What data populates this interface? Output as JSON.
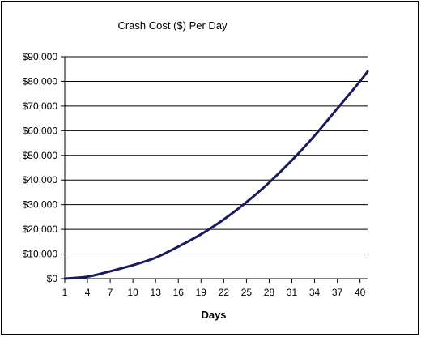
{
  "chart_data": {
    "type": "line",
    "title": "Crash Cost ($) Per Day",
    "xlabel": "Days",
    "ylabel": "",
    "xlim": [
      1,
      41
    ],
    "ylim": [
      0,
      90000
    ],
    "grid": true,
    "legend": "none",
    "x_ticks": [
      1,
      4,
      7,
      10,
      13,
      16,
      19,
      22,
      25,
      28,
      31,
      34,
      37,
      40
    ],
    "x_tick_labels": [
      "1",
      "4",
      "7",
      "10",
      "13",
      "16",
      "19",
      "22",
      "25",
      "28",
      "31",
      "34",
      "37",
      "40"
    ],
    "y_ticks": [
      0,
      10000,
      20000,
      30000,
      40000,
      50000,
      60000,
      70000,
      80000,
      90000
    ],
    "y_tick_labels": [
      "$0",
      "$10,000",
      "$20,000",
      "$30,000",
      "$40,000",
      "$50,000",
      "$60,000",
      "$70,000",
      "$80,000",
      "$90,000"
    ],
    "series": [
      {
        "color": "#1a1a5e",
        "x": [
          1,
          4,
          7,
          10,
          13,
          16,
          19,
          22,
          25,
          28,
          31,
          34,
          37,
          40,
          41
        ],
        "y": [
          0,
          800,
          3000,
          5500,
          8500,
          13000,
          18000,
          24000,
          31000,
          39000,
          48000,
          58000,
          69000,
          80000,
          84000
        ]
      }
    ]
  }
}
